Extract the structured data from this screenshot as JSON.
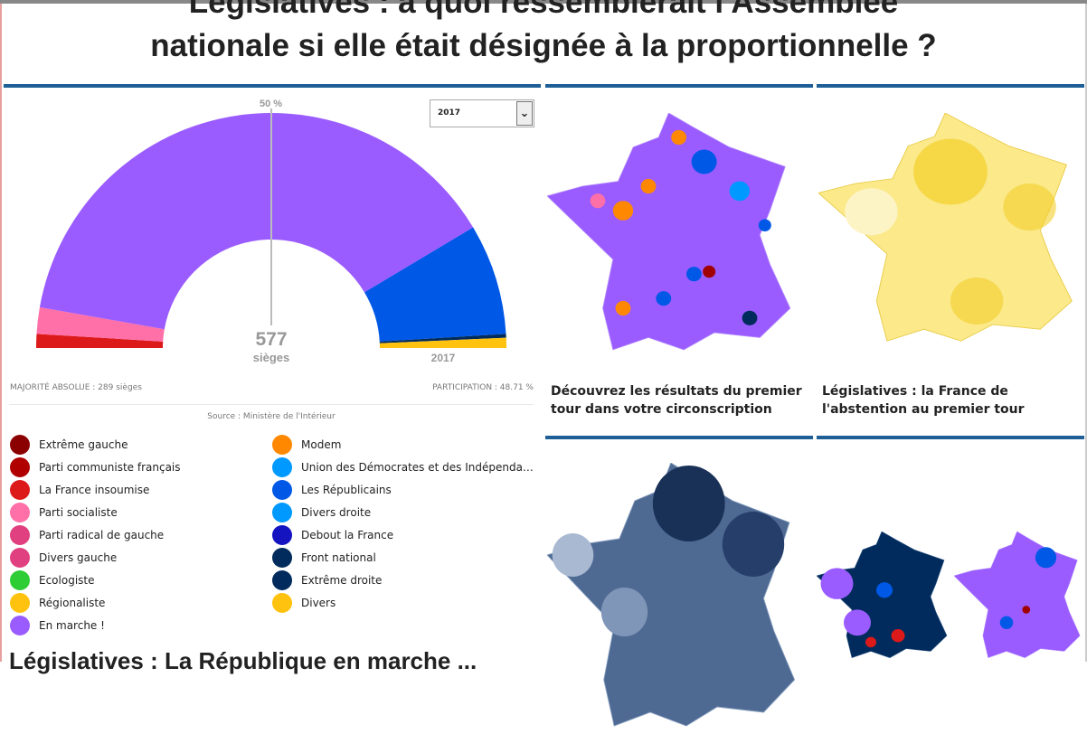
{
  "title": {
    "line1": "Législatives : à quoi ressemblerait l'Assemblée",
    "line2": "nationale si elle était désignée à la proportionnelle ?"
  },
  "chart_data": {
    "type": "hemicycle",
    "total_seats": 577,
    "total_label": "577",
    "seats_label": "sièges",
    "year_label": "2017",
    "majority_marker": "50 %",
    "series": [
      {
        "name": "La France insoumise",
        "seats": 11,
        "color": "#dd1a1a"
      },
      {
        "name": "Parti socialiste",
        "seats": 21,
        "color": "#ff6fa8"
      },
      {
        "name": "En marche !",
        "seats": 446,
        "color": "#9a5cff"
      },
      {
        "name": "Les Républicains",
        "seats": 88,
        "color": "#0058e6"
      },
      {
        "name": "Front national",
        "seats": 3,
        "color": "#002b5c"
      },
      {
        "name": "Divers",
        "seats": 8,
        "color": "#ffc20e"
      }
    ]
  },
  "year_select": {
    "value": "2017",
    "arrow": "⌄"
  },
  "majority": "MAJORITÉ ABSOLUE : 289 sièges",
  "participation": "PARTICIPATION : 48.71 %",
  "source": "Source : Ministère de l'Intérieur",
  "legend": [
    {
      "label": "Extrême gauche",
      "color": "#8b0000"
    },
    {
      "label": "Parti communiste français",
      "color": "#b00000"
    },
    {
      "label": "La France insoumise",
      "color": "#dd1a1a"
    },
    {
      "label": "Parti socialiste",
      "color": "#ff6fa8"
    },
    {
      "label": "Parti radical de gauche",
      "color": "#e0407f"
    },
    {
      "label": "Divers gauche",
      "color": "#e0407f"
    },
    {
      "label": "Ecologiste",
      "color": "#2ecc35"
    },
    {
      "label": "Régionaliste",
      "color": "#ffc20e"
    },
    {
      "label": "En marche !",
      "color": "#9a5cff"
    },
    {
      "label": "Modem",
      "color": "#ff8800"
    },
    {
      "label": "Union des Démocrates et des Indépenda…",
      "color": "#0099ff"
    },
    {
      "label": "Les Républicains",
      "color": "#0058e6"
    },
    {
      "label": "Divers droite",
      "color": "#0099ff"
    },
    {
      "label": "Debout la France",
      "color": "#1414c0"
    },
    {
      "label": "Front national",
      "color": "#002b5c"
    },
    {
      "label": "Extrême droite",
      "color": "#002b5c"
    },
    {
      "label": "Divers",
      "color": "#ffc20e"
    }
  ],
  "cards": [
    {
      "caption1": "Découvrez les résultats du premier",
      "caption2": "tour dans votre circonscription"
    },
    {
      "caption1": "Législatives : la France de",
      "caption2": "l'abstention au premier tour"
    }
  ],
  "bottom_heading": "Législatives : La République en marche ..."
}
